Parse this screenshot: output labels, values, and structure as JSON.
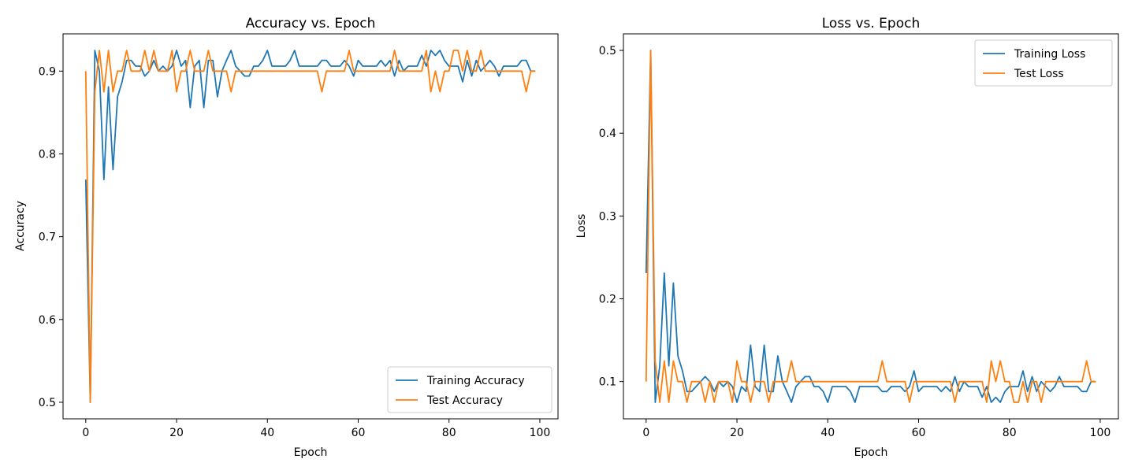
{
  "chart_data": [
    {
      "type": "line",
      "title": "Accuracy vs. Epoch",
      "xlabel": "Epoch",
      "ylabel": "Accuracy",
      "xlim": [
        -5,
        104
      ],
      "ylim": [
        0.48,
        0.945
      ],
      "xticks": [
        0,
        20,
        40,
        60,
        80,
        100
      ],
      "yticks": [
        0.5,
        0.6,
        0.7,
        0.8,
        0.9
      ],
      "xtick_labels": [
        "0",
        "20",
        "40",
        "60",
        "80",
        "100"
      ],
      "ytick_labels": [
        "0.5",
        "0.6",
        "0.7",
        "0.8",
        "0.9"
      ],
      "grid": false,
      "legend_position": "lower-right",
      "series": [
        {
          "name": "Training Accuracy",
          "color": "#1f77b4",
          "x": [
            0,
            1,
            2,
            3,
            4,
            5,
            6,
            7,
            8,
            9,
            10,
            11,
            12,
            13,
            14,
            15,
            16,
            17,
            18,
            19,
            20,
            21,
            22,
            23,
            24,
            25,
            26,
            27,
            28,
            29,
            30,
            31,
            32,
            33,
            34,
            35,
            36,
            37,
            38,
            39,
            40,
            41,
            42,
            43,
            44,
            45,
            46,
            47,
            48,
            49,
            50,
            51,
            52,
            53,
            54,
            55,
            56,
            57,
            58,
            59,
            60,
            61,
            62,
            63,
            64,
            65,
            66,
            67,
            68,
            69,
            70,
            71,
            72,
            73,
            74,
            75,
            76,
            77,
            78,
            79,
            80,
            81,
            82,
            83,
            84,
            85,
            86,
            87,
            88,
            89,
            90,
            91,
            92,
            93,
            94,
            95,
            96,
            97,
            98,
            99
          ],
          "values": [
            0.769,
            0.5,
            0.925,
            0.9,
            0.769,
            0.881,
            0.781,
            0.869,
            0.887,
            0.913,
            0.913,
            0.906,
            0.906,
            0.894,
            0.9,
            0.913,
            0.9,
            0.906,
            0.9,
            0.906,
            0.925,
            0.906,
            0.913,
            0.856,
            0.906,
            0.913,
            0.856,
            0.913,
            0.913,
            0.869,
            0.9,
            0.913,
            0.925,
            0.906,
            0.9,
            0.894,
            0.894,
            0.906,
            0.906,
            0.913,
            0.925,
            0.906,
            0.906,
            0.906,
            0.906,
            0.913,
            0.925,
            0.906,
            0.906,
            0.906,
            0.906,
            0.906,
            0.913,
            0.913,
            0.906,
            0.906,
            0.906,
            0.913,
            0.906,
            0.894,
            0.913,
            0.906,
            0.906,
            0.906,
            0.906,
            0.913,
            0.906,
            0.913,
            0.894,
            0.913,
            0.9,
            0.906,
            0.906,
            0.906,
            0.919,
            0.906,
            0.925,
            0.919,
            0.925,
            0.913,
            0.906,
            0.906,
            0.906,
            0.887,
            0.913,
            0.894,
            0.913,
            0.9,
            0.906,
            0.913,
            0.906,
            0.894,
            0.906,
            0.906,
            0.906,
            0.906,
            0.913,
            0.913,
            0.9,
            0.9
          ]
        },
        {
          "name": "Test Accuracy",
          "color": "#ff7f0e",
          "x": [
            0,
            1,
            2,
            3,
            4,
            5,
            6,
            7,
            8,
            9,
            10,
            11,
            12,
            13,
            14,
            15,
            16,
            17,
            18,
            19,
            20,
            21,
            22,
            23,
            24,
            25,
            26,
            27,
            28,
            29,
            30,
            31,
            32,
            33,
            34,
            35,
            36,
            37,
            38,
            39,
            40,
            41,
            42,
            43,
            44,
            45,
            46,
            47,
            48,
            49,
            50,
            51,
            52,
            53,
            54,
            55,
            56,
            57,
            58,
            59,
            60,
            61,
            62,
            63,
            64,
            65,
            66,
            67,
            68,
            69,
            70,
            71,
            72,
            73,
            74,
            75,
            76,
            77,
            78,
            79,
            80,
            81,
            82,
            83,
            84,
            85,
            86,
            87,
            88,
            89,
            90,
            91,
            92,
            93,
            94,
            95,
            96,
            97,
            98,
            99
          ],
          "values": [
            0.9,
            0.5,
            0.875,
            0.925,
            0.875,
            0.925,
            0.875,
            0.9,
            0.9,
            0.925,
            0.9,
            0.9,
            0.9,
            0.925,
            0.9,
            0.925,
            0.9,
            0.9,
            0.9,
            0.925,
            0.875,
            0.9,
            0.9,
            0.925,
            0.9,
            0.9,
            0.9,
            0.925,
            0.9,
            0.9,
            0.9,
            0.9,
            0.875,
            0.9,
            0.9,
            0.9,
            0.9,
            0.9,
            0.9,
            0.9,
            0.9,
            0.9,
            0.9,
            0.9,
            0.9,
            0.9,
            0.9,
            0.9,
            0.9,
            0.9,
            0.9,
            0.9,
            0.875,
            0.9,
            0.9,
            0.9,
            0.9,
            0.9,
            0.925,
            0.9,
            0.9,
            0.9,
            0.9,
            0.9,
            0.9,
            0.9,
            0.9,
            0.9,
            0.925,
            0.9,
            0.9,
            0.9,
            0.9,
            0.9,
            0.9,
            0.925,
            0.875,
            0.9,
            0.875,
            0.9,
            0.9,
            0.925,
            0.925,
            0.9,
            0.925,
            0.9,
            0.9,
            0.925,
            0.9,
            0.9,
            0.9,
            0.9,
            0.9,
            0.9,
            0.9,
            0.9,
            0.9,
            0.875,
            0.9,
            0.9
          ]
        }
      ]
    },
    {
      "type": "line",
      "title": "Loss vs. Epoch",
      "xlabel": "Epoch",
      "ylabel": "Loss",
      "xlim": [
        -5,
        104
      ],
      "ylim": [
        0.055,
        0.52
      ],
      "xticks": [
        0,
        20,
        40,
        60,
        80,
        100
      ],
      "yticks": [
        0.1,
        0.2,
        0.3,
        0.4,
        0.5
      ],
      "xtick_labels": [
        "0",
        "20",
        "40",
        "60",
        "80",
        "100"
      ],
      "ytick_labels": [
        "0.1",
        "0.2",
        "0.3",
        "0.4",
        "0.5"
      ],
      "grid": false,
      "legend_position": "upper-right",
      "series": [
        {
          "name": "Training Loss",
          "color": "#1f77b4",
          "x": [
            0,
            1,
            2,
            3,
            4,
            5,
            6,
            7,
            8,
            9,
            10,
            11,
            12,
            13,
            14,
            15,
            16,
            17,
            18,
            19,
            20,
            21,
            22,
            23,
            24,
            25,
            26,
            27,
            28,
            29,
            30,
            31,
            32,
            33,
            34,
            35,
            36,
            37,
            38,
            39,
            40,
            41,
            42,
            43,
            44,
            45,
            46,
            47,
            48,
            49,
            50,
            51,
            52,
            53,
            54,
            55,
            56,
            57,
            58,
            59,
            60,
            61,
            62,
            63,
            64,
            65,
            66,
            67,
            68,
            69,
            70,
            71,
            72,
            73,
            74,
            75,
            76,
            77,
            78,
            79,
            80,
            81,
            82,
            83,
            84,
            85,
            86,
            87,
            88,
            89,
            90,
            91,
            92,
            93,
            94,
            95,
            96,
            97,
            98,
            99
          ],
          "values": [
            0.231,
            0.5,
            0.075,
            0.119,
            0.231,
            0.119,
            0.219,
            0.131,
            0.113,
            0.088,
            0.088,
            0.094,
            0.1,
            0.106,
            0.1,
            0.088,
            0.1,
            0.094,
            0.1,
            0.094,
            0.075,
            0.094,
            0.088,
            0.144,
            0.094,
            0.088,
            0.144,
            0.088,
            0.088,
            0.131,
            0.1,
            0.088,
            0.075,
            0.094,
            0.1,
            0.106,
            0.106,
            0.094,
            0.094,
            0.088,
            0.075,
            0.094,
            0.094,
            0.094,
            0.094,
            0.088,
            0.075,
            0.094,
            0.094,
            0.094,
            0.094,
            0.094,
            0.088,
            0.088,
            0.094,
            0.094,
            0.094,
            0.088,
            0.094,
            0.113,
            0.088,
            0.094,
            0.094,
            0.094,
            0.094,
            0.088,
            0.094,
            0.088,
            0.106,
            0.088,
            0.1,
            0.094,
            0.094,
            0.094,
            0.081,
            0.094,
            0.075,
            0.081,
            0.075,
            0.088,
            0.094,
            0.094,
            0.094,
            0.113,
            0.088,
            0.106,
            0.088,
            0.1,
            0.094,
            0.088,
            0.094,
            0.106,
            0.094,
            0.094,
            0.094,
            0.094,
            0.088,
            0.088,
            0.1,
            0.1
          ]
        },
        {
          "name": "Test Loss",
          "color": "#ff7f0e",
          "x": [
            0,
            1,
            2,
            3,
            4,
            5,
            6,
            7,
            8,
            9,
            10,
            11,
            12,
            13,
            14,
            15,
            16,
            17,
            18,
            19,
            20,
            21,
            22,
            23,
            24,
            25,
            26,
            27,
            28,
            29,
            30,
            31,
            32,
            33,
            34,
            35,
            36,
            37,
            38,
            39,
            40,
            41,
            42,
            43,
            44,
            45,
            46,
            47,
            48,
            49,
            50,
            51,
            52,
            53,
            54,
            55,
            56,
            57,
            58,
            59,
            60,
            61,
            62,
            63,
            64,
            65,
            66,
            67,
            68,
            69,
            70,
            71,
            72,
            73,
            74,
            75,
            76,
            77,
            78,
            79,
            80,
            81,
            82,
            83,
            84,
            85,
            86,
            87,
            88,
            89,
            90,
            91,
            92,
            93,
            94,
            95,
            96,
            97,
            98,
            99
          ],
          "values": [
            0.1,
            0.5,
            0.125,
            0.075,
            0.125,
            0.075,
            0.125,
            0.1,
            0.1,
            0.075,
            0.1,
            0.1,
            0.1,
            0.075,
            0.1,
            0.075,
            0.1,
            0.1,
            0.1,
            0.075,
            0.125,
            0.1,
            0.1,
            0.075,
            0.1,
            0.1,
            0.1,
            0.075,
            0.1,
            0.1,
            0.1,
            0.1,
            0.125,
            0.1,
            0.1,
            0.1,
            0.1,
            0.1,
            0.1,
            0.1,
            0.1,
            0.1,
            0.1,
            0.1,
            0.1,
            0.1,
            0.1,
            0.1,
            0.1,
            0.1,
            0.1,
            0.1,
            0.125,
            0.1,
            0.1,
            0.1,
            0.1,
            0.1,
            0.075,
            0.1,
            0.1,
            0.1,
            0.1,
            0.1,
            0.1,
            0.1,
            0.1,
            0.1,
            0.075,
            0.1,
            0.1,
            0.1,
            0.1,
            0.1,
            0.1,
            0.075,
            0.125,
            0.1,
            0.125,
            0.1,
            0.1,
            0.075,
            0.075,
            0.1,
            0.075,
            0.1,
            0.1,
            0.075,
            0.1,
            0.1,
            0.1,
            0.1,
            0.1,
            0.1,
            0.1,
            0.1,
            0.1,
            0.125,
            0.1,
            0.1
          ]
        }
      ]
    }
  ]
}
